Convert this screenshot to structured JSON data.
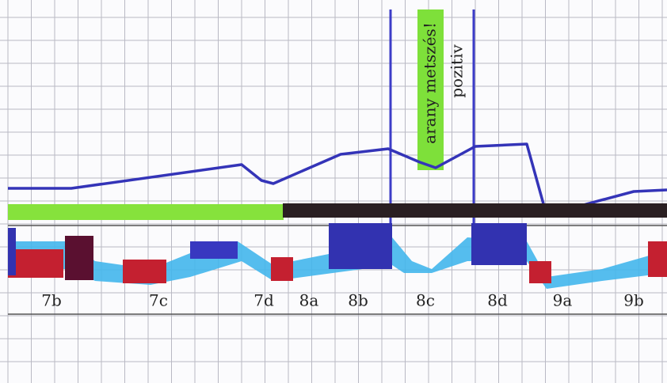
{
  "annotations": [
    "arany metszés!",
    "pozitiv"
  ],
  "segments": [
    "7b",
    "7c",
    "7d",
    "8a",
    "8b",
    "8c",
    "8d",
    "9a",
    "9b"
  ]
}
